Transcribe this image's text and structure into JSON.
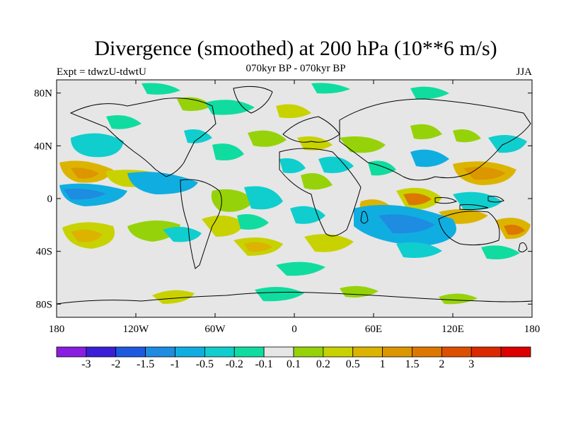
{
  "title": "Divergence (smoothed) at 200 hPa (10**6 m/s)",
  "subtitle": "070kyr BP - 070kyr BP",
  "expt_label": "Expt = tdwzU-tdwtU",
  "season": "JJA",
  "map": {
    "lat_ticks": [
      "80N",
      "40N",
      "0",
      "40S",
      "80S"
    ],
    "lon_ticks": [
      "180",
      "120W",
      "60W",
      "0",
      "60E",
      "120E",
      "180"
    ],
    "background_color": "#e6e6e6"
  },
  "colorbar": {
    "colors": [
      "#8a1ee0",
      "#3a1ed8",
      "#1e5ae0",
      "#1e8ce0",
      "#10aee0",
      "#10cece",
      "#10dca0",
      "#e6e6e6",
      "#96d20a",
      "#c8d200",
      "#dcb400",
      "#dc9600",
      "#dc7800",
      "#dc5000",
      "#dc2800",
      "#dc0000"
    ],
    "labels": [
      "-3",
      "-2",
      "-1.5",
      "-1",
      "-0.5",
      "-0.2",
      "-0.1",
      "0.1",
      "0.2",
      "0.5",
      "1",
      "1.5",
      "2",
      "3"
    ]
  }
}
